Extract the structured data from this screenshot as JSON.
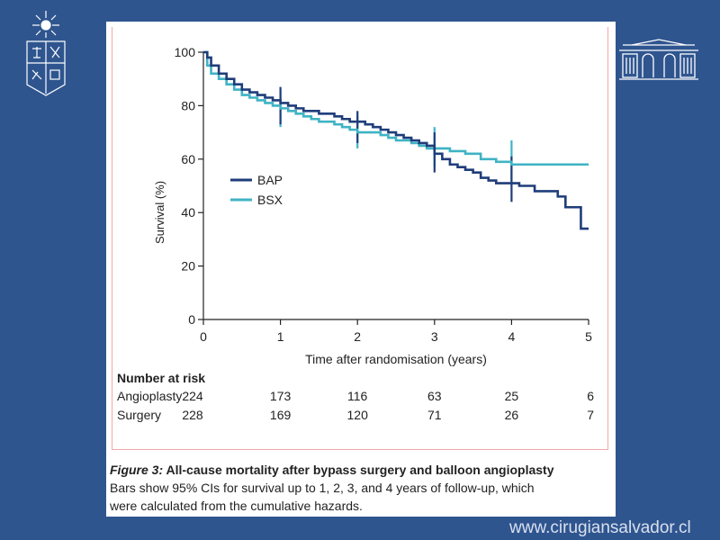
{
  "chart_data": {
    "type": "line",
    "xlabel": "Time after randomisation (years)",
    "ylabel": "Survival (%)",
    "xlim": [
      0,
      5
    ],
    "ylim": [
      0,
      100
    ],
    "xticks": [
      0,
      1,
      2,
      3,
      4,
      5
    ],
    "yticks": [
      0,
      20,
      40,
      60,
      80,
      100
    ],
    "legend_position": "center-left",
    "grid": false,
    "series": [
      {
        "name": "BAP",
        "color": "#1f3d7a",
        "step": true,
        "x": [
          0,
          0.05,
          0.1,
          0.2,
          0.3,
          0.4,
          0.5,
          0.6,
          0.7,
          0.8,
          0.9,
          1.0,
          1.1,
          1.2,
          1.3,
          1.4,
          1.5,
          1.6,
          1.7,
          1.8,
          1.9,
          2.0,
          2.1,
          2.2,
          2.3,
          2.4,
          2.5,
          2.6,
          2.7,
          2.8,
          2.9,
          3.0,
          3.1,
          3.2,
          3.3,
          3.4,
          3.5,
          3.6,
          3.7,
          3.8,
          3.9,
          4.0,
          4.1,
          4.2,
          4.3,
          4.4,
          4.5,
          4.6,
          4.7,
          4.8,
          4.9,
          5.0
        ],
        "y": [
          100,
          98,
          95,
          92,
          90,
          88,
          86,
          85,
          84,
          83,
          82,
          81,
          80,
          79,
          78,
          78,
          77,
          77,
          76,
          75,
          74,
          74,
          73,
          72,
          71,
          70,
          69,
          68,
          67,
          66,
          65,
          62,
          60,
          58,
          57,
          56,
          55,
          53,
          52,
          51,
          51,
          51,
          50,
          50,
          48,
          48,
          48,
          46,
          42,
          42,
          34,
          34
        ],
        "ci": [
          {
            "x": 1,
            "low": 73,
            "high": 87
          },
          {
            "x": 2,
            "low": 66,
            "high": 78
          },
          {
            "x": 3,
            "low": 55,
            "high": 70
          },
          {
            "x": 4,
            "low": 44,
            "high": 61
          }
        ]
      },
      {
        "name": "BSX",
        "color": "#3fb3c4",
        "step": true,
        "x": [
          0,
          0.05,
          0.1,
          0.2,
          0.3,
          0.4,
          0.5,
          0.6,
          0.7,
          0.8,
          0.9,
          1.0,
          1.1,
          1.2,
          1.3,
          1.4,
          1.5,
          1.6,
          1.7,
          1.8,
          1.9,
          2.0,
          2.1,
          2.2,
          2.3,
          2.4,
          2.5,
          2.6,
          2.7,
          2.8,
          2.9,
          3.0,
          3.2,
          3.4,
          3.6,
          3.8,
          4.0,
          4.2,
          4.4,
          4.6,
          4.8,
          5.0
        ],
        "y": [
          100,
          95,
          92,
          90,
          88,
          86,
          84,
          83,
          82,
          81,
          80,
          79,
          78,
          77,
          76,
          75,
          74,
          74,
          73,
          72,
          71,
          70,
          70,
          70,
          69,
          68,
          67,
          67,
          66,
          65,
          64,
          64,
          63,
          62,
          60,
          59,
          58,
          58,
          58,
          58,
          58,
          58
        ],
        "ci": [
          {
            "x": 1,
            "low": 72,
            "high": 86
          },
          {
            "x": 2,
            "low": 64,
            "high": 76
          },
          {
            "x": 3,
            "low": 57,
            "high": 72
          },
          {
            "x": 4,
            "low": 50,
            "high": 67
          }
        ]
      }
    ]
  },
  "risk_table": {
    "title": "Number at risk",
    "rows": [
      {
        "label": "Angioplasty",
        "values": [
          "224",
          "173",
          "116",
          "63",
          "25",
          "6"
        ]
      },
      {
        "label": "Surgery",
        "values": [
          "228",
          "169",
          "120",
          "71",
          "26",
          "7"
        ]
      }
    ]
  },
  "caption": {
    "figure_label": "Figure 3:",
    "title": " All-cause mortality after bypass surgery and balloon angioplasty",
    "line1": "Bars show 95% CIs for survival up to 1, 2, 3, and 4 years of follow-up, which",
    "line2": "were calculated from the cumulative hazards."
  },
  "website": "www.cirugiansalvador.cl"
}
